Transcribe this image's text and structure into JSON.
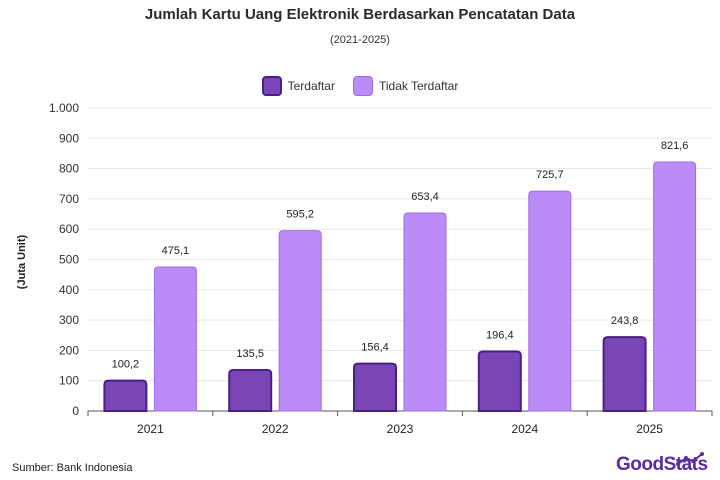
{
  "header": {
    "title": "Jumlah Kartu Uang Elektronik Berdasarkan Pencatatan Data",
    "subtitle": "(2021-2025)"
  },
  "footer": {
    "source": "Sumber: Bank Indonesia",
    "logo_text": "GoodStats"
  },
  "colors": {
    "registered_fill": "#7a46b5",
    "registered_stroke": "#4a1f86",
    "unregistered_fill": "#bb8bf7",
    "unregistered_stroke": "#9a6ee6",
    "grid": "#e6e6e6",
    "axis": "#555555"
  },
  "chart_data": {
    "type": "bar",
    "title": "Jumlah Kartu Uang Elektronik Berdasarkan Pencatatan Data",
    "subtitle": "(2021-2025)",
    "xlabel": "",
    "ylabel": "(Juta Unit)",
    "categories": [
      "2021",
      "2022",
      "2023",
      "2024",
      "2025"
    ],
    "ylim": [
      0,
      1000
    ],
    "yticks": [
      0,
      100,
      200,
      300,
      400,
      500,
      600,
      700,
      800,
      900,
      1000
    ],
    "ytick_labels": [
      "0",
      "100",
      "200",
      "300",
      "400",
      "500",
      "600",
      "700",
      "800",
      "900",
      "1.000"
    ],
    "grid": true,
    "legend_position": "top-center",
    "series": [
      {
        "name": "Terdaftar",
        "values": [
          100.2,
          135.5,
          156.4,
          196.4,
          243.8
        ],
        "labels": [
          "100,2",
          "135,5",
          "156,4",
          "196,4",
          "243,8"
        ]
      },
      {
        "name": "Tidak Terdaftar",
        "values": [
          475.1,
          595.2,
          653.4,
          725.7,
          821.6
        ],
        "labels": [
          "475,1",
          "595,2",
          "653,4",
          "725,7",
          "821,6"
        ]
      }
    ]
  }
}
